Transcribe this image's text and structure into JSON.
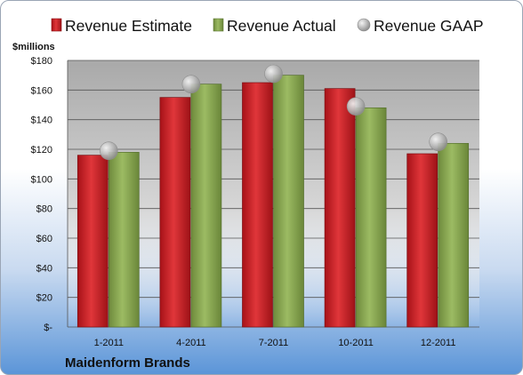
{
  "chart_data": {
    "type": "bar",
    "ylabel": "$millions",
    "ylim": [
      0,
      180
    ],
    "y_ticks": [
      0,
      20,
      40,
      60,
      80,
      100,
      120,
      140,
      160,
      180
    ],
    "y_tick_labels": [
      "$-",
      "$20",
      "$40",
      "$60",
      "$80",
      "$100",
      "$120",
      "$140",
      "$160",
      "$180"
    ],
    "categories": [
      "1-2011",
      "4-2011",
      "7-2011",
      "10-2011",
      "12-2011"
    ],
    "series": [
      {
        "name": "Revenue Estimate",
        "kind": "bar",
        "color": "#d42a2e",
        "values": [
          116,
          155,
          165,
          161,
          117
        ]
      },
      {
        "name": "Revenue Actual",
        "kind": "bar",
        "color": "#8fae58",
        "values": [
          118,
          164,
          170,
          148,
          124
        ]
      },
      {
        "name": "Revenue GAAP",
        "kind": "marker",
        "color": "#b0b0b0",
        "values": [
          119,
          164,
          171,
          149,
          125
        ]
      }
    ],
    "grid": true,
    "legend": "top",
    "company_label": "Maidenform Brands"
  }
}
